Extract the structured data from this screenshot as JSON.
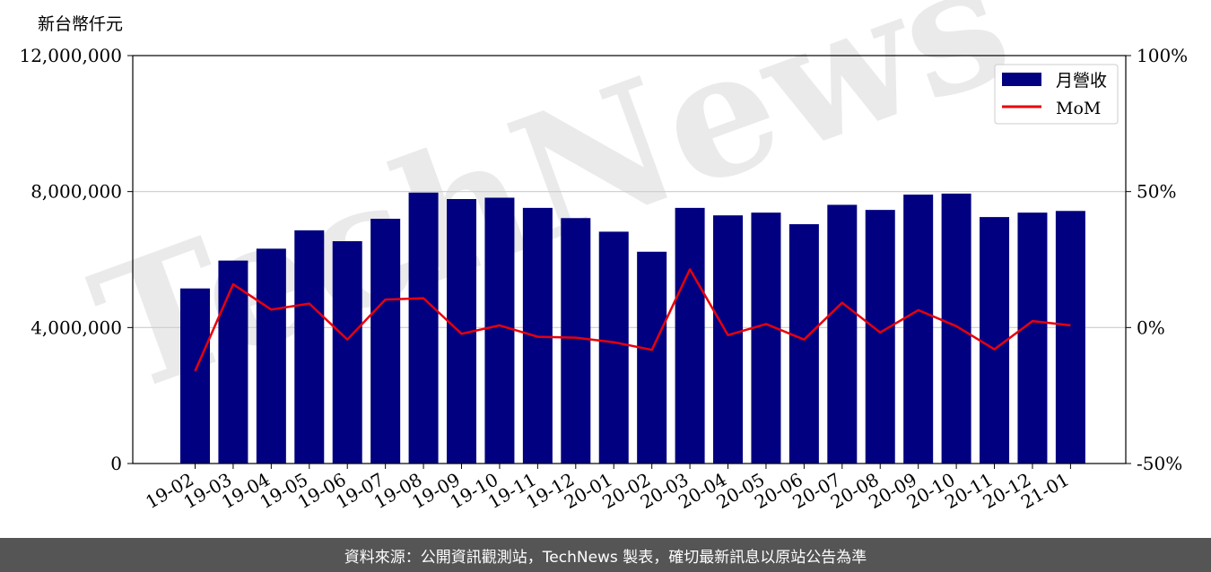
{
  "chart_data": {
    "type": "bar",
    "y_unit_label": "新台幣仟元",
    "categories": [
      "19-02",
      "19-03",
      "19-04",
      "19-05",
      "19-06",
      "19-07",
      "19-08",
      "19-09",
      "19-10",
      "19-11",
      "19-12",
      "20-01",
      "20-02",
      "20-03",
      "20-04",
      "20-05",
      "20-06",
      "20-07",
      "20-08",
      "20-09",
      "20-10",
      "20-11",
      "20-12",
      "21-01"
    ],
    "series": [
      {
        "name": "月營收",
        "kind": "bar",
        "axis": "left",
        "color": "#000080",
        "values": [
          5150000,
          5970000,
          6320000,
          6860000,
          6540000,
          7200000,
          7970000,
          7780000,
          7820000,
          7520000,
          7220000,
          6820000,
          6230000,
          7520000,
          7300000,
          7380000,
          7040000,
          7610000,
          7460000,
          7910000,
          7940000,
          7250000,
          7380000,
          7430000
        ]
      },
      {
        "name": "MoM",
        "kind": "line",
        "axis": "right",
        "color": "#e8000b",
        "values": [
          -16.0,
          15.9,
          6.6,
          8.8,
          -4.4,
          10.3,
          10.8,
          -2.3,
          0.8,
          -3.4,
          -3.7,
          -5.4,
          -8.2,
          21.4,
          -2.8,
          1.3,
          -4.4,
          9.1,
          -1.8,
          6.4,
          0.5,
          -8.0,
          2.4,
          0.8
        ]
      }
    ],
    "ylim": [
      0,
      12000000
    ],
    "y_ticks": [
      "0",
      "4,000,000",
      "8,000,000",
      "12,000,000"
    ],
    "y2lim": [
      -50,
      100
    ],
    "y2_ticks": [
      "-50%",
      "0%",
      "50%",
      "100%"
    ],
    "legend_position": "top-right",
    "grid": "horizontal"
  },
  "watermark_text": "TechNews",
  "footer_text": "資料來源：公開資訊觀測站，TechNews 製表，確切最新訊息以原站公告為準"
}
